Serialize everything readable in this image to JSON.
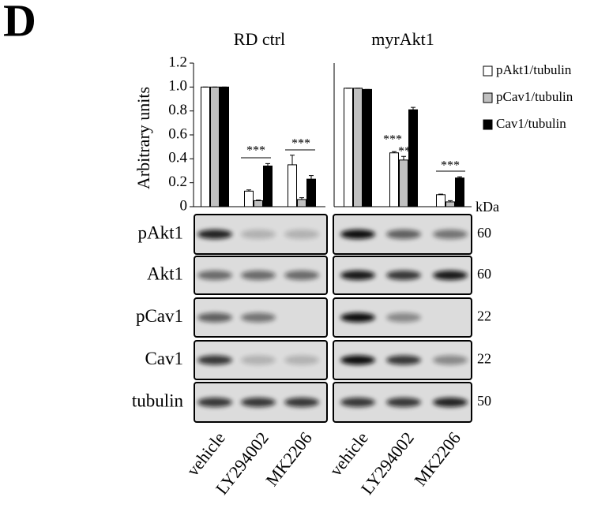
{
  "panel_label": "D",
  "chart_data": [
    {
      "type": "bar",
      "title": "RD ctrl",
      "y_label": "Arbitrary units",
      "categories": [
        "vehicle",
        "LY294002",
        "MK2206"
      ],
      "ylim": [
        0,
        1.2
      ],
      "yticks": [
        0,
        0.2,
        0.4,
        0.6,
        0.8,
        {
          "value": 1,
          "label": "1.0"
        },
        1.2
      ],
      "series": [
        {
          "color": "#ffffff",
          "values": [
            1,
            0.13,
            0.35
          ],
          "errors": [
            0,
            0.01,
            0.08
          ]
        },
        {
          "color": "#c0c0c0",
          "values": [
            1,
            0.05,
            0.06
          ],
          "errors": [
            0,
            0.005,
            0.015
          ]
        },
        {
          "color": "#000000",
          "values": [
            1,
            0.34,
            0.23
          ],
          "errors": [
            0,
            0.02,
            0.03
          ]
        }
      ],
      "annotations": [
        "***",
        "***"
      ]
    },
    {
      "type": "bar",
      "title": "myrAkt1",
      "categories": [
        "vehicle",
        "LY294002",
        "MK2206"
      ],
      "ylim": [
        0,
        1.2
      ],
      "series": [
        {
          "name": "pAkt1/tubulin",
          "color": "#ffffff",
          "values": [
            0.99,
            0.45,
            0.1
          ],
          "errors": [
            0,
            0.01,
            0.005
          ]
        },
        {
          "name": "pCav1/tubulin",
          "color": "#c0c0c0",
          "values": [
            0.99,
            0.39,
            0.04
          ],
          "errors": [
            0,
            0.03,
            0.01
          ]
        },
        {
          "name": "Cav1/tubulin",
          "color": "#000000",
          "values": [
            0.98,
            0.81,
            0.24
          ],
          "errors": [
            0,
            0.02,
            0.01
          ]
        }
      ],
      "annotations": [
        "***",
        "**",
        "***"
      ]
    }
  ],
  "blots": {
    "kda_label": "kDa",
    "rows": [
      {
        "label": "pAkt1",
        "kda": 60
      },
      {
        "label": "Akt1",
        "kda": 60
      },
      {
        "label": "pCav1",
        "kda": 22
      },
      {
        "label": "Cav1",
        "kda": 22
      },
      {
        "label": "tubulin",
        "kda": 50
      }
    ]
  }
}
